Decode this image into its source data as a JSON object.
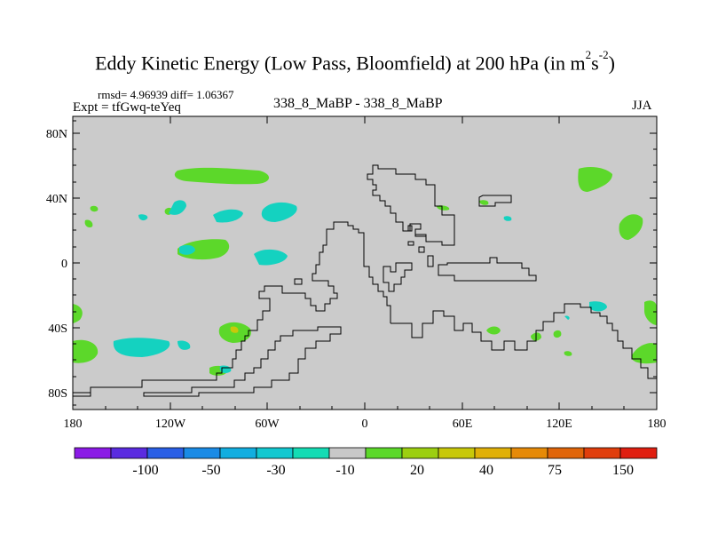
{
  "title": {
    "main": "Eddy Kinetic Energy (Low Pass, Bloomfield) at 200 hPa (in m",
    "exp1": "2",
    "mid": "s",
    "exp2": "-2",
    "close": ")"
  },
  "stats": "rmsd= 4.96939 diff= 1.06367",
  "expt": "Expt = tfGwq-teYeq",
  "diff_name": "338_8_MaBP - 338_8_MaBP",
  "season": "JJA",
  "y_ticks": [
    "80N",
    "40N",
    "0",
    "40S",
    "80S"
  ],
  "x_ticks": [
    "180",
    "120W",
    "60W",
    "0",
    "60E",
    "120E",
    "180"
  ],
  "colorbar": {
    "colors": [
      "#8b1ae6",
      "#5a2be0",
      "#2a5fe6",
      "#1a8be6",
      "#12aee0",
      "#12c8d0",
      "#14dcb4",
      "#c8c8c8",
      "#5cd82a",
      "#9ccf10",
      "#c8c80a",
      "#e0b008",
      "#e68a08",
      "#e0650a",
      "#e03e0c",
      "#e01e10"
    ],
    "labels": [
      "-100",
      "-50",
      "-30",
      "-10",
      "20",
      "40",
      "75",
      "150"
    ]
  },
  "colors": {
    "positive": "#5cd82a",
    "negative": "#14d2c0",
    "background": "#cbcbcb",
    "yellow": "#c8c80a"
  }
}
